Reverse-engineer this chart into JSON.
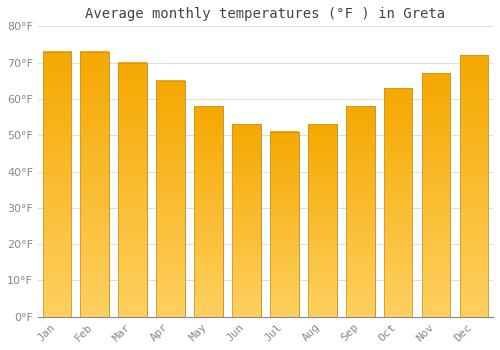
{
  "title": "Average monthly temperatures (°F ) in Greta",
  "categories": [
    "Jan",
    "Feb",
    "Mar",
    "Apr",
    "May",
    "Jun",
    "Jul",
    "Aug",
    "Sep",
    "Oct",
    "Nov",
    "Dec"
  ],
  "values": [
    73,
    73,
    70,
    65,
    58,
    53,
    51,
    53,
    58,
    63,
    67,
    72
  ],
  "bar_color_top": "#F5A800",
  "bar_color_bottom": "#FFD060",
  "bar_edge_color": "#C8922A",
  "background_color": "#FFFFFF",
  "plot_bg_color": "#FFFFFF",
  "grid_color": "#DDDDDD",
  "ylim": [
    0,
    80
  ],
  "yticks": [
    0,
    10,
    20,
    30,
    40,
    50,
    60,
    70,
    80
  ],
  "title_fontsize": 10,
  "tick_fontsize": 8,
  "tick_label_color": "#888888",
  "title_color": "#444444",
  "bar_width": 0.75
}
